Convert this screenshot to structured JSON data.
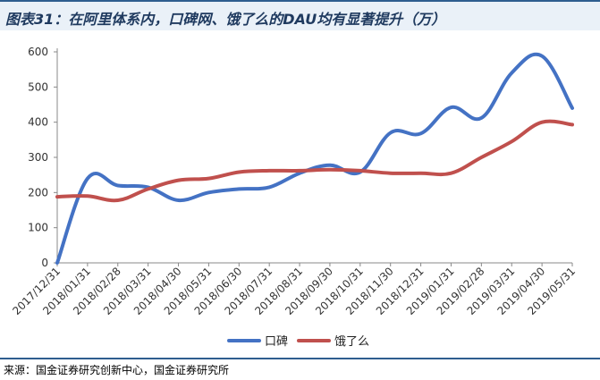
{
  "title": "图表31：在阿里体系内，口碑网、饿了么的DAU均有显著提升（万）",
  "source": "来源：国金证券研究创新中心，国金证券研究所",
  "chart_data": {
    "type": "line",
    "x": [
      "2017/12/31",
      "2018/01/31",
      "2018/02/28",
      "2018/03/31",
      "2018/04/30",
      "2018/05/31",
      "2018/06/30",
      "2018/07/31",
      "2018/08/31",
      "2018/09/30",
      "2018/10/31",
      "2018/11/30",
      "2018/12/31",
      "2019/01/31",
      "2019/02/28",
      "2019/03/31",
      "2019/04/30",
      "2019/05/31"
    ],
    "series": [
      {
        "name": "口碑",
        "color": "#4472c4",
        "values": [
          0,
          240,
          220,
          215,
          178,
          200,
          210,
          215,
          255,
          278,
          258,
          370,
          368,
          442,
          412,
          540,
          588,
          440
        ]
      },
      {
        "name": "饿了么",
        "color": "#c0504d",
        "values": [
          188,
          190,
          178,
          210,
          235,
          240,
          258,
          262,
          262,
          265,
          262,
          255,
          255,
          255,
          300,
          345,
          400,
          393
        ]
      }
    ],
    "ylim": [
      0,
      600
    ],
    "yticks": [
      0,
      100,
      200,
      300,
      400,
      500,
      600
    ],
    "grid": false,
    "legend": "bottom"
  }
}
